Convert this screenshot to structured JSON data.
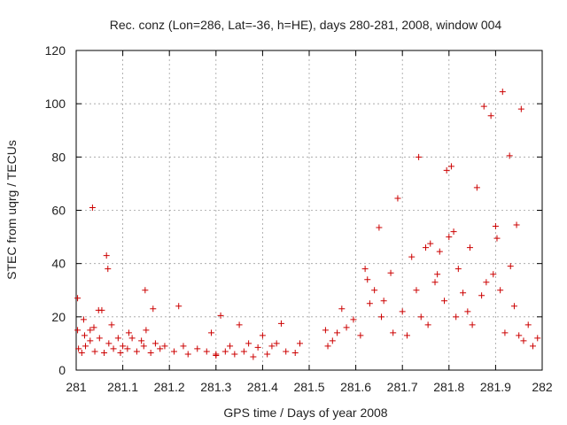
{
  "chart_data": {
    "type": "scatter",
    "title": "Rec. conz (Lon=286, Lat=-36, h=HE), days 280-281, 2008, window 004",
    "xlabel": "GPS time / Days of year 2008",
    "ylabel": "STEC from uqrg / TECUs",
    "xlim": [
      281,
      282
    ],
    "ylim": [
      0,
      120
    ],
    "xticks": [
      281,
      281.1,
      281.2,
      281.3,
      281.4,
      281.5,
      281.6,
      281.7,
      281.8,
      281.9,
      282
    ],
    "xtick_labels": [
      "281",
      "281.1",
      "281.2",
      "281.3",
      "281.4",
      "281.5",
      "281.6",
      "281.7",
      "281.8",
      "281.9",
      "282"
    ],
    "yticks": [
      0,
      20,
      40,
      60,
      80,
      100,
      120
    ],
    "ytick_labels": [
      "0",
      "20",
      "40",
      "60",
      "80",
      "100",
      "120"
    ],
    "grid": true,
    "marker": "+",
    "color": "#cc0000",
    "series": [
      {
        "name": "STEC",
        "points": [
          [
            281.003,
            27
          ],
          [
            281.003,
            15
          ],
          [
            281.005,
            8
          ],
          [
            281.012,
            6.5
          ],
          [
            281.016,
            19
          ],
          [
            281.018,
            13
          ],
          [
            281.02,
            9
          ],
          [
            281.03,
            15
          ],
          [
            281.03,
            11
          ],
          [
            281.035,
            61
          ],
          [
            281.038,
            16
          ],
          [
            281.04,
            7
          ],
          [
            281.048,
            22.5
          ],
          [
            281.05,
            12
          ],
          [
            281.055,
            22.5
          ],
          [
            281.06,
            6.5
          ],
          [
            281.065,
            43
          ],
          [
            281.068,
            38
          ],
          [
            281.07,
            10
          ],
          [
            281.076,
            17
          ],
          [
            281.08,
            8
          ],
          [
            281.09,
            12
          ],
          [
            281.095,
            6.5
          ],
          [
            281.1,
            9
          ],
          [
            281.11,
            8
          ],
          [
            281.113,
            14
          ],
          [
            281.12,
            12
          ],
          [
            281.13,
            7
          ],
          [
            281.14,
            11
          ],
          [
            281.145,
            9
          ],
          [
            281.148,
            30
          ],
          [
            281.15,
            15
          ],
          [
            281.16,
            6.5
          ],
          [
            281.165,
            23
          ],
          [
            281.17,
            10
          ],
          [
            281.18,
            8
          ],
          [
            281.19,
            9
          ],
          [
            281.21,
            7
          ],
          [
            281.22,
            24
          ],
          [
            281.23,
            9
          ],
          [
            281.24,
            6
          ],
          [
            281.26,
            8
          ],
          [
            281.28,
            7
          ],
          [
            281.29,
            14
          ],
          [
            281.3,
            5.5
          ],
          [
            281.3,
            6
          ],
          [
            281.31,
            20.5
          ],
          [
            281.32,
            7
          ],
          [
            281.33,
            9
          ],
          [
            281.34,
            6
          ],
          [
            281.35,
            17
          ],
          [
            281.36,
            7
          ],
          [
            281.37,
            10
          ],
          [
            281.38,
            5
          ],
          [
            281.39,
            8.5
          ],
          [
            281.4,
            13
          ],
          [
            281.41,
            6
          ],
          [
            281.42,
            9
          ],
          [
            281.43,
            10
          ],
          [
            281.44,
            17.5
          ],
          [
            281.45,
            7
          ],
          [
            281.47,
            6.5
          ],
          [
            281.48,
            10
          ],
          [
            281.535,
            15
          ],
          [
            281.54,
            9
          ],
          [
            281.55,
            11
          ],
          [
            281.56,
            14
          ],
          [
            281.57,
            23
          ],
          [
            281.58,
            16
          ],
          [
            281.595,
            19
          ],
          [
            281.61,
            13
          ],
          [
            281.62,
            38
          ],
          [
            281.625,
            34
          ],
          [
            281.63,
            25
          ],
          [
            281.64,
            30
          ],
          [
            281.65,
            53.5
          ],
          [
            281.655,
            20
          ],
          [
            281.66,
            26
          ],
          [
            281.675,
            36.5
          ],
          [
            281.68,
            14
          ],
          [
            281.69,
            64.5
          ],
          [
            281.7,
            22
          ],
          [
            281.71,
            13
          ],
          [
            281.72,
            42.5
          ],
          [
            281.73,
            30
          ],
          [
            281.735,
            80
          ],
          [
            281.74,
            20
          ],
          [
            281.75,
            46
          ],
          [
            281.755,
            17
          ],
          [
            281.76,
            47.5
          ],
          [
            281.77,
            33
          ],
          [
            281.775,
            36
          ],
          [
            281.78,
            44.5
          ],
          [
            281.79,
            26
          ],
          [
            281.795,
            75
          ],
          [
            281.8,
            50
          ],
          [
            281.805,
            76.5
          ],
          [
            281.81,
            52
          ],
          [
            281.815,
            20
          ],
          [
            281.82,
            38
          ],
          [
            281.83,
            29
          ],
          [
            281.84,
            22
          ],
          [
            281.845,
            46
          ],
          [
            281.85,
            17
          ],
          [
            281.86,
            68.5
          ],
          [
            281.87,
            28
          ],
          [
            281.875,
            99
          ],
          [
            281.88,
            33
          ],
          [
            281.89,
            95.5
          ],
          [
            281.895,
            36
          ],
          [
            281.9,
            54
          ],
          [
            281.903,
            49.5
          ],
          [
            281.91,
            30
          ],
          [
            281.915,
            104.5
          ],
          [
            281.92,
            14
          ],
          [
            281.93,
            80.5
          ],
          [
            281.932,
            39
          ],
          [
            281.94,
            24
          ],
          [
            281.945,
            54.5
          ],
          [
            281.95,
            13
          ],
          [
            281.955,
            98
          ],
          [
            281.96,
            11
          ],
          [
            281.97,
            17
          ],
          [
            281.98,
            9
          ],
          [
            281.99,
            12
          ]
        ]
      }
    ]
  }
}
